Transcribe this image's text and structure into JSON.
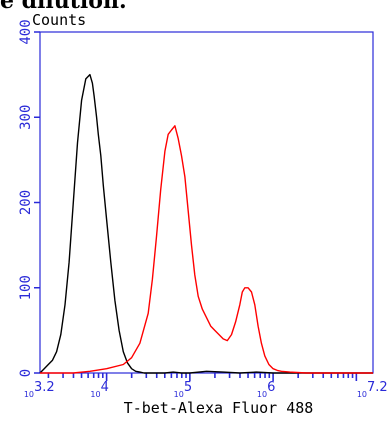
{
  "cut_title": "e dilution.",
  "chart_data": {
    "type": "line",
    "title": "",
    "ylabel": "Counts",
    "xlabel": "T-bet-Alexa Fluor 488",
    "xscale": "log",
    "xlim": [
      3.2,
      7.2
    ],
    "ylim": [
      0,
      400
    ],
    "yticks": [
      0,
      100,
      200,
      300,
      400
    ],
    "xtick_labels": [
      {
        "pos": 3.2,
        "base": "10",
        "exp": "3.2"
      },
      {
        "pos": 4,
        "base": "10",
        "exp": "4"
      },
      {
        "pos": 5,
        "base": "10",
        "exp": "5"
      },
      {
        "pos": 6,
        "base": "10",
        "exp": "6"
      },
      {
        "pos": 7.2,
        "base": "10",
        "exp": "7.2"
      }
    ],
    "minor_tick_decades": [
      3,
      4,
      5,
      6,
      7
    ],
    "series": [
      {
        "color": "#000000",
        "x": [
          3.2,
          3.25,
          3.3,
          3.35,
          3.4,
          3.45,
          3.5,
          3.55,
          3.6,
          3.65,
          3.7,
          3.75,
          3.8,
          3.83,
          3.85,
          3.88,
          3.9,
          3.93,
          3.96,
          4.0,
          4.05,
          4.1,
          4.15,
          4.2,
          4.25,
          4.3,
          4.35,
          4.4,
          4.45,
          4.5,
          4.6,
          4.7,
          4.8,
          4.9,
          5.0,
          5.2,
          5.4,
          5.6,
          5.8,
          6.0,
          6.2,
          6.5,
          7.2
        ],
        "y": [
          0,
          5,
          10,
          15,
          25,
          45,
          80,
          130,
          200,
          270,
          320,
          345,
          350,
          340,
          325,
          300,
          280,
          255,
          220,
          180,
          130,
          85,
          50,
          25,
          12,
          5,
          2,
          1,
          0,
          0,
          0,
          0,
          1,
          0,
          0,
          2,
          1,
          0,
          1,
          0,
          0,
          0,
          0
        ]
      },
      {
        "color": "#ff0000",
        "x": [
          3.2,
          3.6,
          3.8,
          4.0,
          4.2,
          4.3,
          4.4,
          4.5,
          4.55,
          4.6,
          4.65,
          4.7,
          4.74,
          4.78,
          4.82,
          4.86,
          4.9,
          4.94,
          4.98,
          5.02,
          5.06,
          5.1,
          5.15,
          5.2,
          5.25,
          5.3,
          5.35,
          5.4,
          5.45,
          5.5,
          5.55,
          5.6,
          5.63,
          5.66,
          5.7,
          5.74,
          5.78,
          5.82,
          5.86,
          5.9,
          5.95,
          6.0,
          6.05,
          6.1,
          6.2,
          6.4,
          6.6,
          7.2
        ],
        "y": [
          0,
          0,
          2,
          5,
          10,
          18,
          35,
          70,
          110,
          160,
          215,
          260,
          280,
          285,
          290,
          275,
          255,
          230,
          190,
          150,
          115,
          90,
          75,
          65,
          55,
          50,
          45,
          40,
          38,
          45,
          60,
          80,
          95,
          100,
          100,
          95,
          80,
          55,
          35,
          20,
          10,
          5,
          3,
          2,
          1,
          0,
          0,
          0
        ]
      }
    ]
  }
}
